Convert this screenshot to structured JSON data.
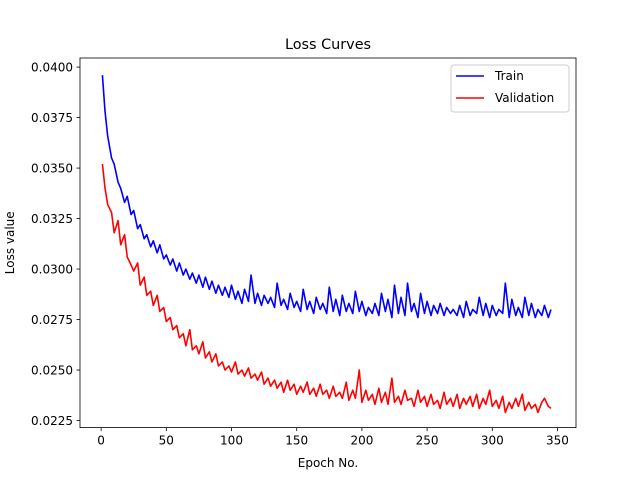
{
  "chart_data": {
    "type": "line",
    "title": "Loss Curves",
    "xlabel": "Epoch No.",
    "ylabel": "Loss value",
    "xlim": [
      -16.2,
      364.2
    ],
    "ylim": [
      0.02215,
      0.04045
    ],
    "x_ticks": [
      0,
      50,
      100,
      150,
      200,
      250,
      300,
      350
    ],
    "y_ticks": [
      0.0225,
      0.025,
      0.0275,
      0.03,
      0.0325,
      0.035,
      0.0375,
      0.04
    ],
    "y_tick_labels": [
      "0.0225",
      "0.0250",
      "0.0275",
      "0.0300",
      "0.0325",
      "0.0350",
      "0.0375",
      "0.0400"
    ],
    "grid": false,
    "legend_position": "top-right",
    "series": [
      {
        "name": "Train",
        "color": "#0000ff",
        "x": [
          1,
          3,
          5,
          8,
          10,
          13,
          15,
          18,
          20,
          23,
          25,
          28,
          30,
          33,
          35,
          38,
          40,
          43,
          45,
          48,
          50,
          53,
          55,
          58,
          60,
          63,
          65,
          68,
          70,
          73,
          75,
          78,
          80,
          83,
          85,
          88,
          90,
          93,
          95,
          98,
          100,
          103,
          105,
          108,
          110,
          113,
          115,
          118,
          120,
          123,
          125,
          128,
          130,
          133,
          135,
          138,
          140,
          143,
          145,
          148,
          150,
          153,
          155,
          158,
          160,
          163,
          165,
          168,
          170,
          173,
          175,
          178,
          180,
          183,
          185,
          188,
          190,
          193,
          195,
          198,
          200,
          203,
          205,
          208,
          210,
          213,
          215,
          218,
          220,
          223,
          225,
          228,
          230,
          233,
          235,
          238,
          240,
          243,
          245,
          248,
          250,
          253,
          255,
          258,
          260,
          263,
          265,
          268,
          270,
          273,
          275,
          278,
          280,
          283,
          285,
          288,
          290,
          293,
          295,
          298,
          300,
          303,
          305,
          308,
          310,
          313,
          315,
          318,
          320,
          323,
          325,
          328,
          330,
          333,
          335,
          338,
          340,
          343,
          345
        ],
        "values": [
          0.0396,
          0.0378,
          0.0366,
          0.0355,
          0.0352,
          0.0343,
          0.034,
          0.0333,
          0.0336,
          0.0327,
          0.0329,
          0.032,
          0.0322,
          0.0315,
          0.0317,
          0.0311,
          0.0314,
          0.0308,
          0.0312,
          0.0305,
          0.0307,
          0.0302,
          0.0305,
          0.0299,
          0.0303,
          0.0297,
          0.03,
          0.0295,
          0.0298,
          0.0293,
          0.0297,
          0.0291,
          0.0296,
          0.029,
          0.0294,
          0.0288,
          0.0292,
          0.0287,
          0.0291,
          0.0286,
          0.0292,
          0.0285,
          0.0289,
          0.0283,
          0.029,
          0.0284,
          0.0297,
          0.0283,
          0.0288,
          0.0282,
          0.0287,
          0.0283,
          0.0286,
          0.0281,
          0.0293,
          0.0282,
          0.0285,
          0.028,
          0.0288,
          0.0281,
          0.0284,
          0.0279,
          0.029,
          0.028,
          0.0284,
          0.0278,
          0.0286,
          0.028,
          0.0283,
          0.0278,
          0.0291,
          0.0279,
          0.0285,
          0.0277,
          0.0287,
          0.0279,
          0.0283,
          0.0278,
          0.0289,
          0.0279,
          0.0284,
          0.0277,
          0.0281,
          0.0278,
          0.0283,
          0.0277,
          0.0288,
          0.0279,
          0.0285,
          0.0276,
          0.0292,
          0.0278,
          0.0286,
          0.0277,
          0.0293,
          0.0279,
          0.0283,
          0.0276,
          0.0288,
          0.0278,
          0.0284,
          0.0277,
          0.0282,
          0.0278,
          0.0283,
          0.0277,
          0.0281,
          0.0278,
          0.028,
          0.0277,
          0.0282,
          0.0276,
          0.0284,
          0.0277,
          0.028,
          0.0278,
          0.0286,
          0.0277,
          0.0283,
          0.0276,
          0.0282,
          0.0277,
          0.028,
          0.0278,
          0.0293,
          0.0276,
          0.0285,
          0.0277,
          0.0281,
          0.0276,
          0.0286,
          0.0277,
          0.0283,
          0.0276,
          0.028,
          0.0277,
          0.0282,
          0.0276,
          0.028
        ]
      },
      {
        "name": "Validation",
        "color": "#ff0000",
        "x": [
          1,
          3,
          5,
          8,
          10,
          13,
          15,
          18,
          20,
          23,
          25,
          28,
          30,
          33,
          35,
          38,
          40,
          43,
          45,
          48,
          50,
          53,
          55,
          58,
          60,
          63,
          65,
          68,
          70,
          73,
          75,
          78,
          80,
          83,
          85,
          88,
          90,
          93,
          95,
          98,
          100,
          103,
          105,
          108,
          110,
          113,
          115,
          118,
          120,
          123,
          125,
          128,
          130,
          133,
          135,
          138,
          140,
          143,
          145,
          148,
          150,
          153,
          155,
          158,
          160,
          163,
          165,
          168,
          170,
          173,
          175,
          178,
          180,
          183,
          185,
          188,
          190,
          193,
          195,
          198,
          200,
          203,
          205,
          208,
          210,
          213,
          215,
          218,
          220,
          223,
          225,
          228,
          230,
          233,
          235,
          238,
          240,
          243,
          245,
          248,
          250,
          253,
          255,
          258,
          260,
          263,
          265,
          268,
          270,
          273,
          275,
          278,
          280,
          283,
          285,
          288,
          290,
          293,
          295,
          298,
          300,
          303,
          305,
          308,
          310,
          313,
          315,
          318,
          320,
          323,
          325,
          328,
          330,
          333,
          335,
          338,
          340,
          343,
          345
        ],
        "values": [
          0.0352,
          0.034,
          0.0332,
          0.0328,
          0.0318,
          0.0324,
          0.0312,
          0.0317,
          0.0306,
          0.0302,
          0.0299,
          0.0303,
          0.0292,
          0.0296,
          0.0287,
          0.0289,
          0.0282,
          0.0287,
          0.0279,
          0.0281,
          0.0274,
          0.0276,
          0.027,
          0.0272,
          0.0266,
          0.0268,
          0.0262,
          0.027,
          0.026,
          0.0262,
          0.0258,
          0.0264,
          0.0256,
          0.0259,
          0.0254,
          0.0258,
          0.0252,
          0.0254,
          0.025,
          0.0252,
          0.0249,
          0.0254,
          0.0248,
          0.025,
          0.0247,
          0.0251,
          0.0246,
          0.0248,
          0.0245,
          0.0249,
          0.0243,
          0.0246,
          0.0242,
          0.0245,
          0.0241,
          0.0244,
          0.0239,
          0.0245,
          0.024,
          0.0243,
          0.0238,
          0.0242,
          0.0239,
          0.0244,
          0.0238,
          0.0241,
          0.0237,
          0.0243,
          0.0238,
          0.024,
          0.0236,
          0.0242,
          0.0237,
          0.0239,
          0.0236,
          0.0244,
          0.0235,
          0.024,
          0.0236,
          0.025,
          0.0234,
          0.024,
          0.0235,
          0.0238,
          0.0233,
          0.0241,
          0.0234,
          0.0239,
          0.0233,
          0.0246,
          0.0234,
          0.0237,
          0.0233,
          0.024,
          0.0235,
          0.0236,
          0.0232,
          0.024,
          0.0234,
          0.0237,
          0.0232,
          0.0238,
          0.0233,
          0.0235,
          0.0231,
          0.0239,
          0.0233,
          0.0236,
          0.0232,
          0.0238,
          0.0231,
          0.0236,
          0.0233,
          0.0237,
          0.0232,
          0.0238,
          0.0231,
          0.0236,
          0.0233,
          0.024,
          0.0232,
          0.0235,
          0.0231,
          0.0237,
          0.0229,
          0.0234,
          0.0231,
          0.0236,
          0.0232,
          0.0238,
          0.023,
          0.0234,
          0.0231,
          0.0233,
          0.0229,
          0.0234,
          0.0236,
          0.0232,
          0.0231
        ]
      }
    ]
  }
}
